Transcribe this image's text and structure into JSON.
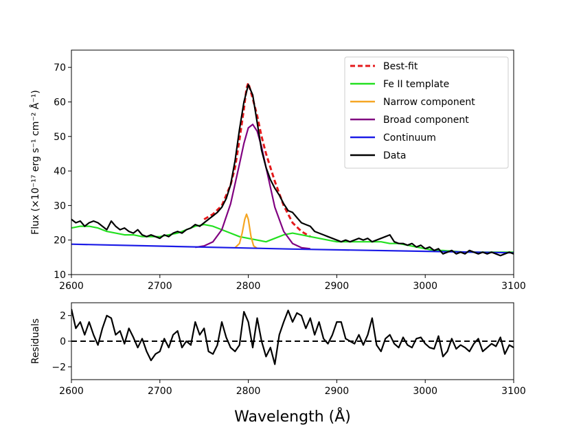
{
  "chart_data": [
    {
      "type": "line",
      "ylabel": "Flux (×10⁻¹⁷ erg s⁻¹ cm⁻² Å⁻¹)",
      "xlim": [
        2600,
        3100
      ],
      "xticks": [
        2600,
        2700,
        2800,
        2900,
        3000,
        3100
      ],
      "ylim": [
        10,
        75
      ],
      "yticks": [
        10,
        20,
        30,
        40,
        50,
        60,
        70
      ],
      "legend": "upper right",
      "series": [
        {
          "name": "Best-fit",
          "color": "#e41a1c",
          "dash": true,
          "x": [
            2750,
            2760,
            2770,
            2780,
            2785,
            2790,
            2795,
            2798,
            2800,
            2805,
            2810,
            2815,
            2820,
            2830,
            2840,
            2850,
            2860,
            2870
          ],
          "values": [
            26,
            27.5,
            30,
            36,
            41,
            49,
            58,
            64,
            65.5,
            61,
            56,
            50,
            45,
            37,
            30,
            25,
            22.5,
            21
          ]
        },
        {
          "name": "Fe II template",
          "color": "#22e01f",
          "x": [
            2600,
            2610,
            2620,
            2630,
            2640,
            2650,
            2660,
            2670,
            2680,
            2690,
            2700,
            2710,
            2720,
            2730,
            2740,
            2750,
            2760,
            2770,
            2780,
            2790,
            2800,
            2810,
            2820,
            2830,
            2840,
            2850,
            2860,
            2870,
            2880,
            2890,
            2900,
            2910,
            2920,
            2930,
            2940,
            2950,
            2960,
            2970,
            2980,
            2990,
            3000,
            3010,
            3020,
            3030,
            3040,
            3050,
            3060,
            3070,
            3080,
            3090,
            3100
          ],
          "values": [
            23.5,
            24,
            24,
            23.5,
            22.5,
            22,
            21.5,
            21.5,
            21,
            21,
            21,
            21.5,
            22,
            23,
            24,
            24.5,
            24,
            23,
            22,
            21,
            20.5,
            20,
            19.5,
            20.5,
            21.5,
            22,
            21.5,
            21,
            20.5,
            20,
            19.5,
            19.5,
            19.5,
            19.5,
            19.5,
            19.5,
            19,
            19,
            18.5,
            18,
            17.5,
            17,
            17,
            16.8,
            16.6,
            16.5,
            16.5,
            16.5,
            16.5,
            16.5,
            16.5
          ]
        },
        {
          "name": "Narrow component",
          "color": "#f5a623",
          "x": [
            2785,
            2790,
            2793,
            2796,
            2798,
            2800,
            2803,
            2806,
            2810
          ],
          "values": [
            17.8,
            19,
            22,
            26,
            27.5,
            26,
            21,
            18.3,
            17.6
          ]
        },
        {
          "name": "Broad component",
          "color": "#800080",
          "x": [
            2740,
            2750,
            2760,
            2770,
            2780,
            2790,
            2795,
            2800,
            2805,
            2810,
            2815,
            2820,
            2830,
            2840,
            2850,
            2860,
            2870
          ],
          "values": [
            17.9,
            18.3,
            19.5,
            23,
            30.5,
            42,
            48,
            52.5,
            53.5,
            51.5,
            47,
            41,
            29.5,
            22.5,
            19,
            17.8,
            17.5
          ]
        },
        {
          "name": "Continuum",
          "color": "#1a1ae6",
          "x": [
            2600,
            2850,
            3100
          ],
          "values": [
            18.8,
            17.4,
            16.3
          ]
        },
        {
          "name": "Data",
          "color": "#000000",
          "x": [
            2600,
            2605,
            2610,
            2615,
            2620,
            2625,
            2630,
            2635,
            2640,
            2645,
            2650,
            2655,
            2660,
            2665,
            2670,
            2675,
            2680,
            2685,
            2690,
            2695,
            2700,
            2705,
            2710,
            2715,
            2720,
            2725,
            2730,
            2735,
            2740,
            2745,
            2750,
            2755,
            2760,
            2765,
            2770,
            2775,
            2780,
            2785,
            2790,
            2795,
            2800,
            2805,
            2810,
            2815,
            2820,
            2825,
            2830,
            2835,
            2840,
            2845,
            2850,
            2855,
            2860,
            2865,
            2870,
            2875,
            2880,
            2885,
            2890,
            2895,
            2900,
            2905,
            2910,
            2915,
            2920,
            2925,
            2930,
            2935,
            2940,
            2945,
            2950,
            2955,
            2960,
            2965,
            2970,
            2975,
            2980,
            2985,
            2990,
            2995,
            3000,
            3005,
            3010,
            3015,
            3020,
            3025,
            3030,
            3035,
            3040,
            3045,
            3050,
            3055,
            3060,
            3065,
            3070,
            3075,
            3080,
            3085,
            3090,
            3095,
            3100
          ],
          "values": [
            26,
            25,
            25.5,
            24,
            25,
            25.5,
            25,
            24,
            23,
            25.5,
            24,
            23,
            23.5,
            22.5,
            22,
            23,
            21.5,
            21,
            21.5,
            21,
            20.5,
            21.5,
            21,
            22,
            22.5,
            22,
            23,
            23.5,
            24.5,
            24,
            25,
            26,
            27,
            28,
            29.5,
            32,
            36,
            43,
            52,
            60,
            65,
            62,
            54,
            46,
            41,
            37.5,
            35,
            33,
            30.5,
            28.5,
            28,
            26.5,
            25,
            24.5,
            24,
            22.5,
            22,
            21.5,
            21,
            20.5,
            20,
            19.5,
            20,
            19.5,
            20,
            20.5,
            20,
            20.5,
            19.5,
            20,
            20.5,
            21,
            21.5,
            19.5,
            19,
            19,
            18.5,
            19,
            18,
            18.5,
            17.5,
            18,
            17,
            17.5,
            16,
            16.5,
            17,
            16,
            16.5,
            16,
            17,
            16.5,
            16,
            16.5,
            16,
            16.5,
            16,
            15.5,
            16,
            16.5,
            16
          ]
        }
      ]
    },
    {
      "type": "line",
      "ylabel": "Residuals",
      "xlabel": "Wavelength (Å)",
      "xlim": [
        2600,
        3100
      ],
      "xticks": [
        2600,
        2700,
        2800,
        2900,
        3000,
        3100
      ],
      "ylim": [
        -3,
        3
      ],
      "yticks": [
        -2,
        0,
        2
      ],
      "hline": 0,
      "series": [
        {
          "color": "#000000",
          "x": [
            2600,
            2605,
            2610,
            2615,
            2620,
            2625,
            2630,
            2635,
            2640,
            2645,
            2650,
            2655,
            2660,
            2665,
            2670,
            2675,
            2680,
            2685,
            2690,
            2695,
            2700,
            2705,
            2710,
            2715,
            2720,
            2725,
            2730,
            2735,
            2740,
            2745,
            2750,
            2755,
            2760,
            2765,
            2770,
            2775,
            2780,
            2785,
            2790,
            2795,
            2800,
            2805,
            2810,
            2815,
            2820,
            2825,
            2830,
            2835,
            2840,
            2845,
            2850,
            2855,
            2860,
            2865,
            2870,
            2875,
            2880,
            2885,
            2890,
            2895,
            2900,
            2905,
            2910,
            2915,
            2920,
            2925,
            2930,
            2935,
            2940,
            2945,
            2950,
            2955,
            2960,
            2965,
            2970,
            2975,
            2980,
            2985,
            2990,
            2995,
            3000,
            3005,
            3010,
            3015,
            3020,
            3025,
            3030,
            3035,
            3040,
            3045,
            3050,
            3055,
            3060,
            3065,
            3070,
            3075,
            3080,
            3085,
            3090,
            3095,
            3100
          ],
          "values": [
            2.5,
            1,
            1.5,
            0.5,
            1.5,
            0.5,
            -0.3,
            1,
            2,
            1.8,
            0.5,
            0.8,
            -0.2,
            1,
            0.3,
            -0.5,
            0.2,
            -0.8,
            -1.5,
            -1,
            -0.8,
            0.2,
            -0.5,
            0.5,
            0.8,
            -0.5,
            0,
            -0.3,
            1.5,
            0.5,
            1,
            -0.8,
            -1,
            -0.3,
            1.5,
            0.3,
            -0.5,
            -0.8,
            -0.3,
            2.3,
            1.5,
            -0.5,
            1.8,
            0,
            -1.2,
            -0.5,
            -1.8,
            0.5,
            1.5,
            2.4,
            1.5,
            2.2,
            2,
            1,
            1.8,
            0.5,
            1.5,
            0.2,
            -0.2,
            0.5,
            1.5,
            1.5,
            0.2,
            0,
            -0.2,
            0.5,
            -0.3,
            0.5,
            1.8,
            -0.3,
            -0.8,
            0.2,
            0.5,
            -0.2,
            -0.5,
            0.3,
            -0.3,
            -0.5,
            0.2,
            0.3,
            -0.2,
            -0.5,
            -0.6,
            0.4,
            -1.2,
            -0.8,
            0.2,
            -0.6,
            -0.3,
            -0.5,
            -0.8,
            -0.2,
            0.2,
            -0.8,
            -0.5,
            -0.2,
            -0.4,
            0.3,
            -1,
            -0.3,
            -0.5
          ]
        }
      ]
    }
  ]
}
